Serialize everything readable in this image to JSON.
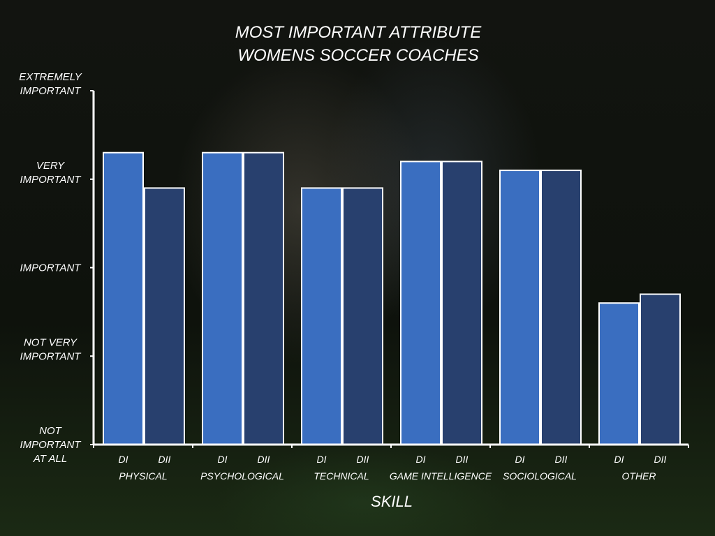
{
  "chart_data": {
    "type": "bar",
    "title": [
      "MOST IMPORTANT ATTRIBUTE",
      "WOMENS SOCCER COACHES"
    ],
    "xlabel": "SKILL",
    "ylabel": "",
    "ylim": [
      0,
      4
    ],
    "y_tick_labels": [
      [
        "NOT",
        "IMPORTANT",
        "AT ALL"
      ],
      [
        "NOT VERY",
        "IMPORTANT"
      ],
      [
        "IMPORTANT"
      ],
      [
        "VERY",
        "IMPORTANT"
      ],
      [
        "EXTREMELY",
        "IMPORTANT"
      ]
    ],
    "categories": [
      "PHYSICAL",
      "PSYCHOLOGICAL",
      "TECHNICAL",
      "GAME INTELLIGENCE",
      "SOCIOLOGICAL",
      "OTHER"
    ],
    "series": [
      {
        "name": "DI",
        "color": "#3a6ec0",
        "values": [
          3.3,
          3.3,
          2.9,
          3.2,
          3.1,
          1.6
        ]
      },
      {
        "name": "DII",
        "color": "#28406e",
        "values": [
          2.9,
          3.3,
          2.9,
          3.2,
          3.1,
          1.7
        ]
      }
    ],
    "grid": false,
    "legend": "none"
  },
  "colors": {
    "axis": "#ffffff",
    "bar_border": "#ffffff"
  }
}
